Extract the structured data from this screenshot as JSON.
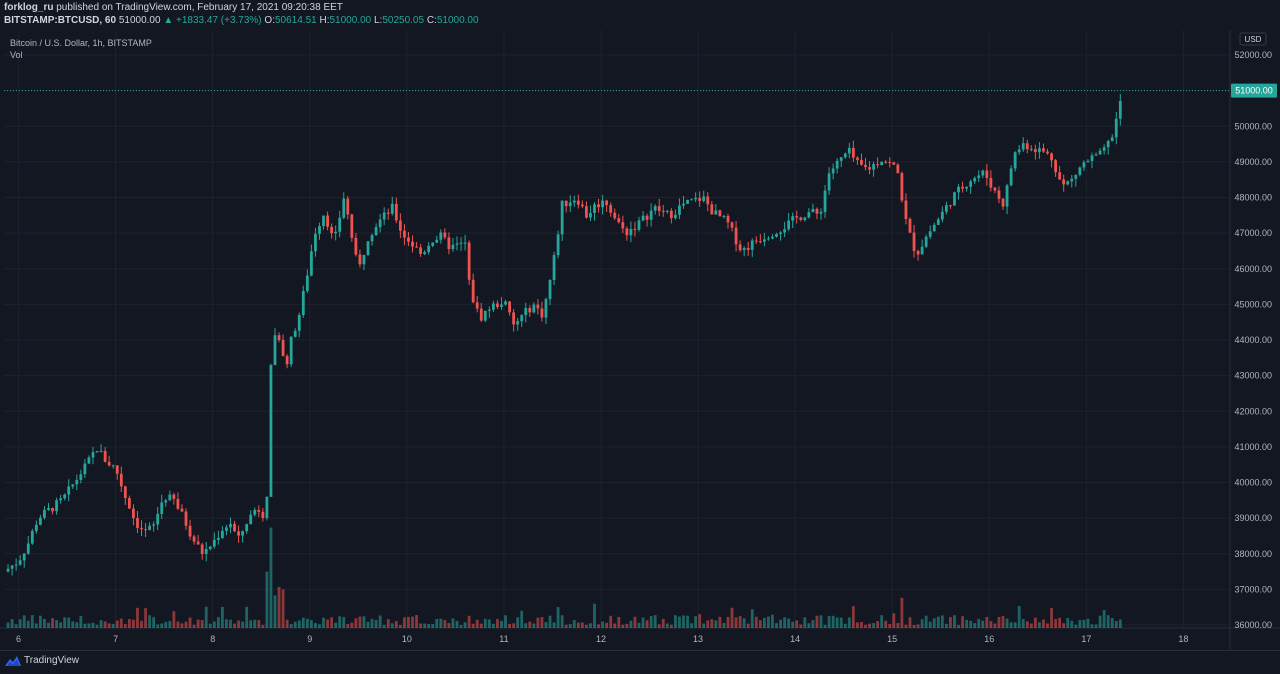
{
  "header": {
    "user": "forklog_ru",
    "published": "published on TradingView.com, February 17, 2021 09:20:38 EET",
    "symbol": "BITSTAMP:BTCUSD, 60",
    "last": "51000.00",
    "change_arrow": "▲",
    "change": "+1833.47 (+3.73%)",
    "o_label": "O:",
    "o": "50614.51",
    "h_label": "H:",
    "h": "51000.00",
    "l_label": "L:",
    "l": "50250.05",
    "c_label": "C:",
    "c": "51000.00"
  },
  "legend": {
    "title": "Bitcoin / U.S. Dollar, 1h, BITSTAMP",
    "vol": "Vol"
  },
  "footer": {
    "brand": "TradingView"
  },
  "colors": {
    "bg": "#131722",
    "up": "#26a69a",
    "down": "#ef5350",
    "grid": "#1e222d",
    "text": "#d1d4dc"
  },
  "chart_data": {
    "type": "candlestick",
    "title": "Bitcoin / U.S. Dollar, 1h, BITSTAMP",
    "currency": "USD",
    "ylim": [
      36000,
      52300
    ],
    "y_ticks": [
      36000,
      37000,
      38000,
      39000,
      40000,
      41000,
      42000,
      43000,
      44000,
      45000,
      46000,
      47000,
      48000,
      49000,
      50000,
      51000,
      52000
    ],
    "x_ticks": [
      6,
      7,
      8,
      9,
      10,
      11,
      12,
      13,
      14,
      15,
      16,
      17,
      18
    ],
    "x_range": [
      5.85,
      18.48
    ],
    "last_price": 51000,
    "price_path": [
      [
        5.85,
        37500
      ],
      [
        6.0,
        37800
      ],
      [
        6.1,
        38300
      ],
      [
        6.2,
        39000
      ],
      [
        6.3,
        39200
      ],
      [
        6.45,
        39500
      ],
      [
        6.55,
        39900
      ],
      [
        6.65,
        40300
      ],
      [
        6.75,
        40700
      ],
      [
        6.8,
        41000
      ],
      [
        6.9,
        40600
      ],
      [
        7.0,
        40400
      ],
      [
        7.05,
        40000
      ],
      [
        7.1,
        39600
      ],
      [
        7.15,
        39300
      ],
      [
        7.2,
        38900
      ],
      [
        7.3,
        38600
      ],
      [
        7.4,
        38800
      ],
      [
        7.45,
        39300
      ],
      [
        7.5,
        39600
      ],
      [
        7.6,
        39500
      ],
      [
        7.7,
        39000
      ],
      [
        7.8,
        38400
      ],
      [
        7.9,
        38000
      ],
      [
        8.0,
        38300
      ],
      [
        8.1,
        38700
      ],
      [
        8.2,
        38900
      ],
      [
        8.25,
        38300
      ],
      [
        8.35,
        38900
      ],
      [
        8.45,
        39300
      ],
      [
        8.5,
        39200
      ],
      [
        8.55,
        39000
      ],
      [
        8.6,
        43200
      ],
      [
        8.65,
        44300
      ],
      [
        8.7,
        43800
      ],
      [
        8.75,
        43200
      ],
      [
        8.8,
        43900
      ],
      [
        8.9,
        44800
      ],
      [
        8.97,
        45800
      ],
      [
        9.05,
        47000
      ],
      [
        9.15,
        47600
      ],
      [
        9.25,
        46700
      ],
      [
        9.35,
        48000
      ],
      [
        9.4,
        47400
      ],
      [
        9.5,
        45900
      ],
      [
        9.6,
        46900
      ],
      [
        9.7,
        47300
      ],
      [
        9.85,
        47700
      ],
      [
        9.95,
        47000
      ],
      [
        10.05,
        46700
      ],
      [
        10.15,
        46400
      ],
      [
        10.25,
        46800
      ],
      [
        10.35,
        46900
      ],
      [
        10.45,
        46600
      ],
      [
        10.6,
        46700
      ],
      [
        10.65,
        45400
      ],
      [
        10.75,
        44600
      ],
      [
        10.85,
        44900
      ],
      [
        11.0,
        45100
      ],
      [
        11.1,
        44400
      ],
      [
        11.2,
        44700
      ],
      [
        11.3,
        45000
      ],
      [
        11.4,
        44700
      ],
      [
        11.5,
        46000
      ],
      [
        11.6,
        47800
      ],
      [
        11.75,
        48000
      ],
      [
        11.85,
        47500
      ],
      [
        11.95,
        47800
      ],
      [
        12.05,
        47900
      ],
      [
        12.15,
        47400
      ],
      [
        12.25,
        47000
      ],
      [
        12.4,
        47300
      ],
      [
        12.55,
        47700
      ],
      [
        12.7,
        47500
      ],
      [
        12.85,
        47800
      ],
      [
        12.95,
        47900
      ],
      [
        13.05,
        48000
      ],
      [
        13.15,
        47600
      ],
      [
        13.3,
        47300
      ],
      [
        13.45,
        46500
      ],
      [
        13.6,
        46800
      ],
      [
        13.75,
        47000
      ],
      [
        13.9,
        47200
      ],
      [
        14.0,
        47400
      ],
      [
        14.15,
        47600
      ],
      [
        14.25,
        47500
      ],
      [
        14.35,
        48700
      ],
      [
        14.45,
        49000
      ],
      [
        14.55,
        49300
      ],
      [
        14.65,
        48900
      ],
      [
        14.75,
        48800
      ],
      [
        14.9,
        49100
      ],
      [
        15.05,
        48800
      ],
      [
        15.15,
        47200
      ],
      [
        15.25,
        46400
      ],
      [
        15.35,
        46900
      ],
      [
        15.5,
        47500
      ],
      [
        15.65,
        48100
      ],
      [
        15.8,
        48500
      ],
      [
        15.95,
        48700
      ],
      [
        16.05,
        48200
      ],
      [
        16.15,
        47800
      ],
      [
        16.25,
        49200
      ],
      [
        16.35,
        49500
      ],
      [
        16.45,
        49400
      ],
      [
        16.55,
        49300
      ],
      [
        16.65,
        49100
      ],
      [
        16.75,
        48300
      ],
      [
        16.85,
        48500
      ],
      [
        16.95,
        48900
      ],
      [
        17.05,
        49100
      ],
      [
        17.15,
        49200
      ],
      [
        17.25,
        49600
      ],
      [
        17.32,
        50300
      ],
      [
        17.38,
        51000
      ]
    ]
  }
}
